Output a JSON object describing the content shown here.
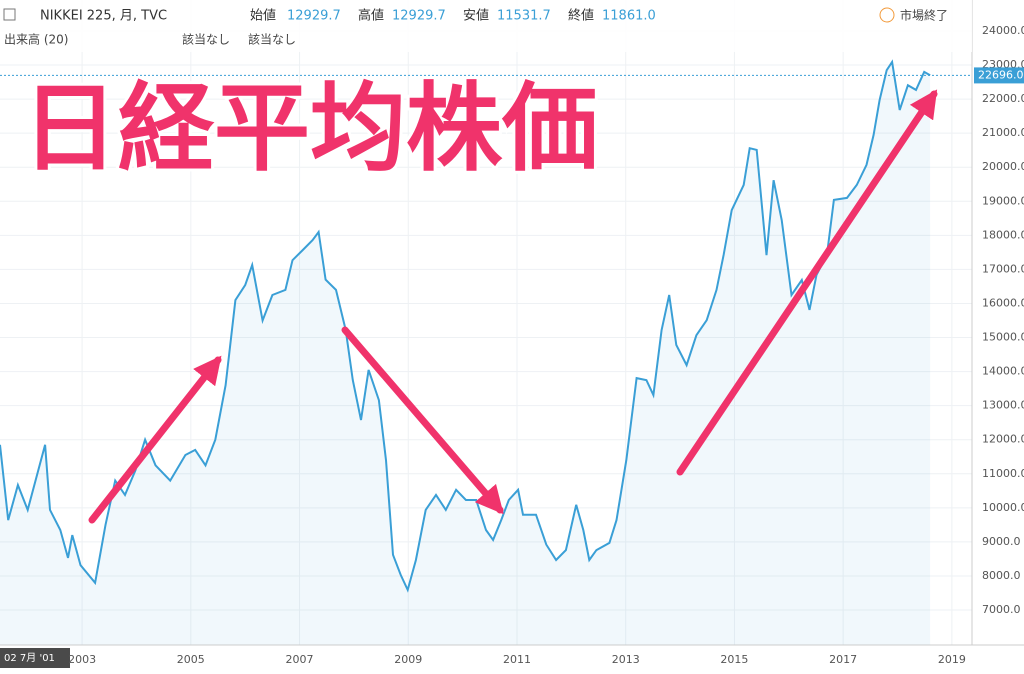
{
  "header": {
    "symbol": "NIKKEI 225, 月, TVC",
    "open_label": "始値",
    "open": "12929.7",
    "high_label": "高値",
    "high": "12929.7",
    "low_label": "安値",
    "low": "11531.7",
    "close_label": "終値",
    "close": "11861.0",
    "volume": "出来高 (20)",
    "na1": "該当なし",
    "na2": "該当なし",
    "status": "市場終了",
    "cursor_date": "02 7月 '01"
  },
  "chart_data": {
    "type": "line",
    "title": "日経平均株価",
    "color": "#3a9fd6",
    "x": [
      2001.49,
      2001.64,
      2001.82,
      2002.0,
      2002.32,
      2002.41,
      2002.6,
      2002.74,
      2002.82,
      2002.97,
      2003.24,
      2003.43,
      2003.61,
      2003.79,
      2003.98,
      2004.16,
      2004.35,
      2004.62,
      2004.9,
      2005.08,
      2005.27,
      2005.45,
      2005.64,
      2005.82,
      2006.0,
      2006.13,
      2006.32,
      2006.5,
      2006.74,
      2006.87,
      2007.06,
      2007.24,
      2007.35,
      2007.48,
      2007.67,
      2007.85,
      2007.98,
      2008.13,
      2008.27,
      2008.46,
      2008.59,
      2008.72,
      2008.86,
      2008.99,
      2009.14,
      2009.32,
      2009.51,
      2009.69,
      2009.88,
      2010.06,
      2010.25,
      2010.43,
      2010.56,
      2010.71,
      2010.85,
      2011.02,
      2011.11,
      2011.35,
      2011.54,
      2011.72,
      2011.9,
      2012.09,
      2012.22,
      2012.33,
      2012.46,
      2012.7,
      2012.83,
      2013.01,
      2013.2,
      2013.38,
      2013.51,
      2013.66,
      2013.8,
      2013.93,
      2014.12,
      2014.3,
      2014.49,
      2014.67,
      2014.8,
      2014.95,
      2015.17,
      2015.28,
      2015.41,
      2015.59,
      2015.72,
      2015.87,
      2016.05,
      2016.24,
      2016.38,
      2016.51,
      2016.7,
      2016.83,
      2017.07,
      2017.25,
      2017.43,
      2017.56,
      2017.67,
      2017.8,
      2017.9,
      2018.04,
      2018.19,
      2018.34,
      2018.49,
      2018.6
    ],
    "values": [
      11850,
      9640,
      10670,
      9940,
      11850,
      9940,
      9350,
      8530,
      9200,
      8320,
      7800,
      9500,
      10800,
      10380,
      11100,
      12000,
      11250,
      10800,
      11550,
      11700,
      11250,
      12000,
      13600,
      16100,
      16540,
      17130,
      15500,
      16250,
      16400,
      17270,
      17570,
      17860,
      18100,
      16700,
      16400,
      15220,
      13750,
      12580,
      14050,
      13160,
      11400,
      8620,
      8030,
      7590,
      8470,
      9940,
      10380,
      9940,
      10530,
      10230,
      10230,
      9350,
      9060,
      9640,
      10230,
      10530,
      9800,
      9800,
      8920,
      8470,
      8760,
      10090,
      9350,
      8470,
      8760,
      8970,
      9640,
      11400,
      13810,
      13750,
      13310,
      15220,
      16250,
      14780,
      14190,
      15070,
      15510,
      16400,
      17420,
      18740,
      19480,
      20560,
      20510,
      17420,
      19620,
      18450,
      16250,
      16690,
      15810,
      16840,
      17420,
      19040,
      19100,
      19480,
      20070,
      20950,
      21970,
      22850,
      23090,
      21680,
      22410,
      22270,
      22800,
      22700
    ],
    "xlim": [
      2001.49,
      2019.37
    ],
    "xticks": [
      2003,
      2005,
      2007,
      2009,
      2011,
      2013,
      2015,
      2017,
      2019
    ],
    "ylim": [
      5973,
      24910
    ],
    "yticks": [
      {
        "value": 7000,
        "label": "7000.0"
      },
      {
        "value": 8000,
        "label": "8000.0"
      },
      {
        "value": 9000,
        "label": "9000.0"
      },
      {
        "value": 10000,
        "label": "10000.0"
      },
      {
        "value": 11000,
        "label": "11000.0"
      },
      {
        "value": 12000,
        "label": "12000.0"
      },
      {
        "value": 13000,
        "label": "13000.0"
      },
      {
        "value": 14000,
        "label": "14000.0"
      },
      {
        "value": 15000,
        "label": "15000.0"
      },
      {
        "value": 16000,
        "label": "16000.0"
      },
      {
        "value": 17000,
        "label": "17000.0"
      },
      {
        "value": 18000,
        "label": "18000.0"
      },
      {
        "value": 19000,
        "label": "19000.0"
      },
      {
        "value": 20000,
        "label": "20000.0"
      },
      {
        "value": 21000,
        "label": "21000.0"
      },
      {
        "value": 22000,
        "label": "22000.0"
      },
      {
        "value": 23000,
        "label": "23000.0"
      },
      {
        "value": 24000,
        "label": "24000.0"
      }
    ],
    "last_price": {
      "value": 22696,
      "label": "22696.0"
    },
    "grid": true
  }
}
